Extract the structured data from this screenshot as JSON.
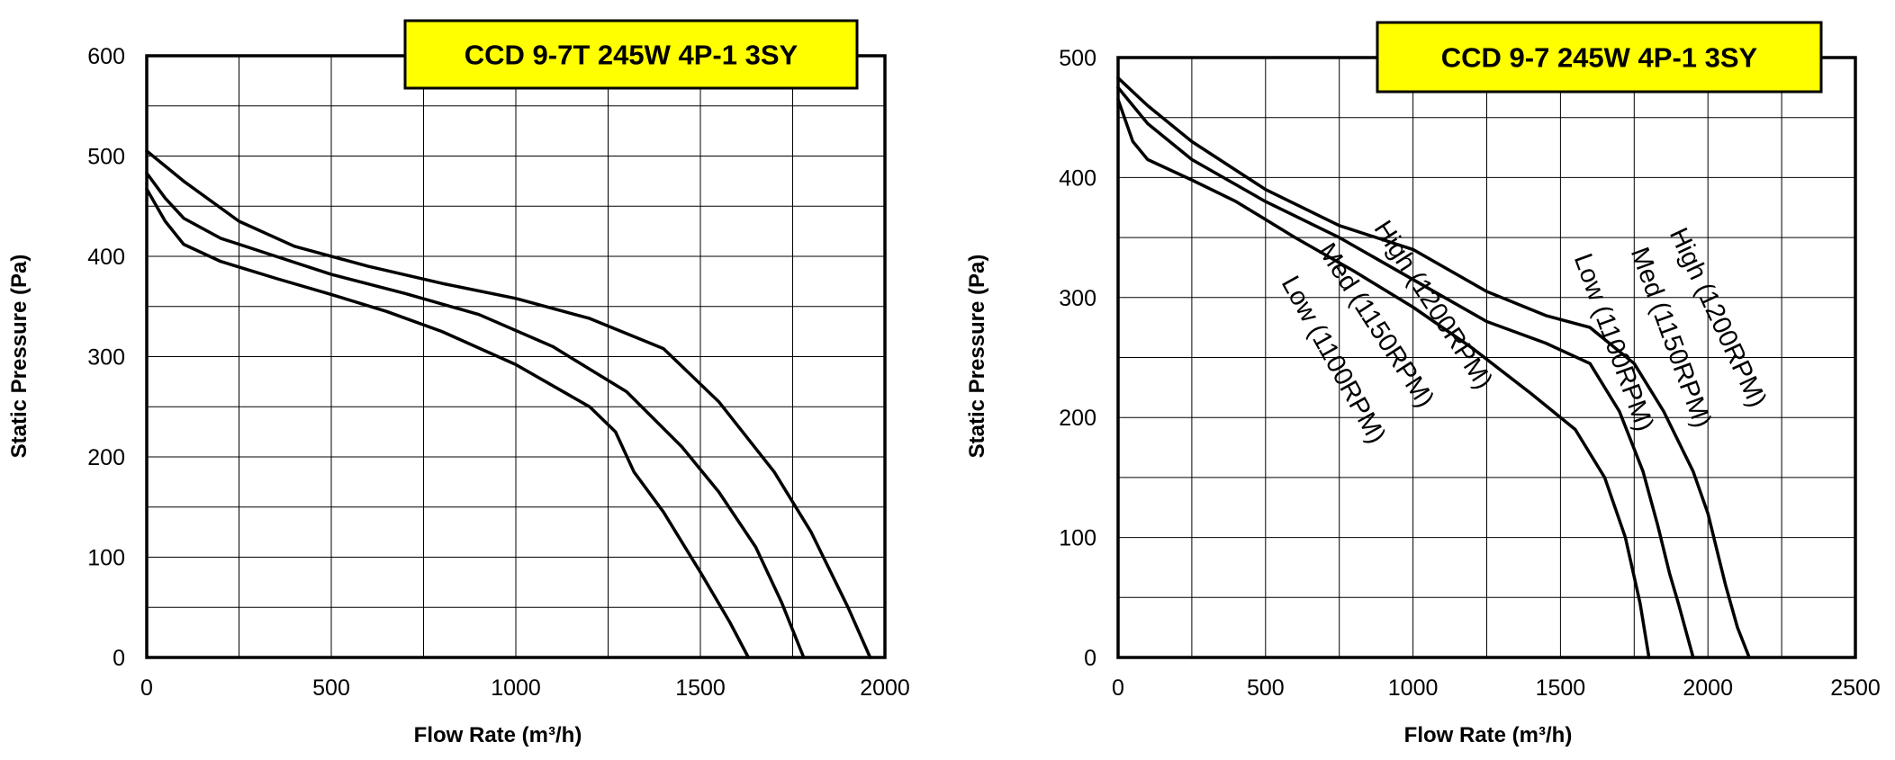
{
  "colors": {
    "title_box": "#ffff00",
    "ink": "#000000",
    "background": "#ffffff"
  },
  "chart_data": [
    {
      "type": "line",
      "title": "CCD 9-7T 245W 4P-1 3SY",
      "xlabel": "Flow Rate (m³/h)",
      "ylabel": "Static Pressure (Pa)",
      "xlim": [
        0,
        2000
      ],
      "ylim": [
        0,
        600
      ],
      "x_ticks": [
        0,
        500,
        1000,
        1500,
        2000
      ],
      "y_ticks": [
        0,
        100,
        200,
        300,
        400,
        500,
        600
      ],
      "x_grid": [
        0,
        250,
        500,
        750,
        1000,
        1250,
        1500,
        1750,
        2000
      ],
      "y_grid": [
        0,
        50,
        100,
        150,
        200,
        250,
        300,
        350,
        400,
        450,
        500,
        550,
        600
      ],
      "series": [
        {
          "name": "High (1200RPM)",
          "x": [
            0,
            100,
            250,
            400,
            600,
            800,
            1000,
            1200,
            1400,
            1550,
            1700,
            1800,
            1900,
            1960
          ],
          "y": [
            505,
            475,
            435,
            410,
            390,
            373,
            358,
            338,
            308,
            255,
            185,
            125,
            50,
            0
          ]
        },
        {
          "name": "Med (1150RPM)",
          "x": [
            0,
            50,
            100,
            200,
            350,
            500,
            700,
            900,
            1100,
            1300,
            1450,
            1550,
            1650,
            1720,
            1780
          ],
          "y": [
            483,
            458,
            438,
            418,
            400,
            382,
            363,
            342,
            310,
            265,
            210,
            165,
            110,
            55,
            0
          ]
        },
        {
          "name": "Low (1100RPM)",
          "x": [
            0,
            50,
            100,
            200,
            350,
            500,
            650,
            800,
            1000,
            1200,
            1270,
            1320,
            1400,
            1500,
            1580,
            1630
          ],
          "y": [
            467,
            435,
            412,
            395,
            378,
            362,
            345,
            325,
            292,
            250,
            225,
            185,
            145,
            85,
            35,
            0
          ]
        }
      ]
    },
    {
      "type": "line",
      "title": "CCD 9-7 245W 4P-1 3SY",
      "xlabel": "Flow Rate (m³/h)",
      "ylabel": "Static Pressure (Pa)",
      "xlim": [
        0,
        2500
      ],
      "ylim": [
        0,
        500
      ],
      "x_ticks": [
        0,
        500,
        1000,
        1500,
        2000,
        2500
      ],
      "y_ticks": [
        0,
        100,
        200,
        300,
        400,
        500
      ],
      "x_grid": [
        0,
        250,
        500,
        750,
        1000,
        1250,
        1500,
        1750,
        2000,
        2250,
        2500
      ],
      "y_grid": [
        0,
        50,
        100,
        150,
        200,
        250,
        300,
        350,
        400,
        450,
        500
      ],
      "series": [
        {
          "name": "High (1200RPM)",
          "x": [
            0,
            100,
            250,
            500,
            750,
            1000,
            1250,
            1450,
            1600,
            1750,
            1850,
            1950,
            2000,
            2040,
            2060,
            2100,
            2140
          ],
          "y": [
            483,
            460,
            430,
            390,
            360,
            340,
            305,
            285,
            275,
            245,
            205,
            155,
            120,
            80,
            60,
            25,
            0
          ]
        },
        {
          "name": "Med (1150RPM)",
          "x": [
            0,
            100,
            250,
            500,
            750,
            1000,
            1250,
            1450,
            1600,
            1700,
            1780,
            1830,
            1870,
            1900,
            1950
          ],
          "y": [
            475,
            445,
            415,
            380,
            350,
            315,
            280,
            262,
            245,
            205,
            155,
            110,
            70,
            45,
            0
          ]
        },
        {
          "name": "Low (1100RPM)",
          "x": [
            0,
            50,
            100,
            250,
            400,
            600,
            800,
            1000,
            1200,
            1400,
            1550,
            1650,
            1720,
            1770,
            1800
          ],
          "y": [
            465,
            430,
            415,
            398,
            380,
            350,
            322,
            292,
            258,
            220,
            190,
            150,
            100,
            45,
            0
          ]
        }
      ]
    }
  ]
}
